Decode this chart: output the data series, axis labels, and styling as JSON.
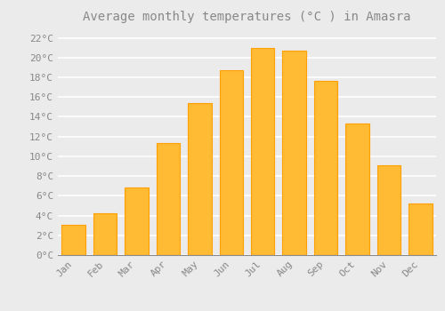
{
  "title": "Average monthly temperatures (°C ) in Amasra",
  "months": [
    "Jan",
    "Feb",
    "Mar",
    "Apr",
    "May",
    "Jun",
    "Jul",
    "Aug",
    "Sep",
    "Oct",
    "Nov",
    "Dec"
  ],
  "temperatures": [
    3.1,
    4.2,
    6.8,
    11.3,
    15.4,
    18.7,
    21.0,
    20.7,
    17.6,
    13.3,
    9.1,
    5.2
  ],
  "bar_color": "#FFBB33",
  "bar_edge_color": "#FFA000",
  "background_color": "#ebebeb",
  "grid_color": "#ffffff",
  "ytick_labels": [
    "0°C",
    "2°C",
    "4°C",
    "6°C",
    "8°C",
    "10°C",
    "12°C",
    "14°C",
    "16°C",
    "18°C",
    "20°C",
    "22°C"
  ],
  "ytick_values": [
    0,
    2,
    4,
    6,
    8,
    10,
    12,
    14,
    16,
    18,
    20,
    22
  ],
  "ylim": [
    0,
    23
  ],
  "title_fontsize": 10,
  "tick_fontsize": 8,
  "font_color": "#888888",
  "bar_width": 0.75
}
